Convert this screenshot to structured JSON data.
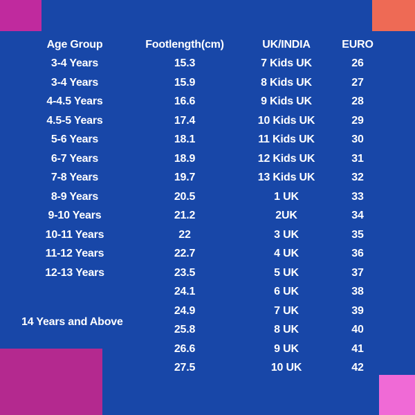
{
  "table": {
    "headers": [
      "Age Group",
      "Footlength(cm)",
      "UK/INDIA",
      "EURO"
    ],
    "rows": [
      [
        "3-4 Years",
        "15.3",
        "7 Kids UK",
        "26"
      ],
      [
        "3-4 Years",
        "15.9",
        "8 Kids UK",
        "27"
      ],
      [
        "4-4.5 Years",
        "16.6",
        "9 Kids UK",
        "28"
      ],
      [
        "4.5-5 Years",
        "17.4",
        "10 Kids UK",
        "29"
      ],
      [
        "5-6 Years",
        "18.1",
        "11 Kids UK",
        "30"
      ],
      [
        "6-7 Years",
        "18.9",
        "12 Kids UK",
        "31"
      ],
      [
        "7-8 Years",
        "19.7",
        "13 Kids UK",
        "32"
      ],
      [
        "8-9 Years",
        "20.5",
        "1 UK",
        "33"
      ],
      [
        "9-10 Years",
        "21.2",
        "2UK",
        "34"
      ],
      [
        "10-11 Years",
        "22",
        "3 UK",
        "35"
      ],
      [
        "11-12 Years",
        "22.7",
        "4 UK",
        "36"
      ],
      [
        "12-13 Years",
        "23.5",
        "5 UK",
        "37"
      ],
      [
        "",
        "24.1",
        "6 UK",
        "38"
      ],
      [
        "",
        "24.9",
        "7 UK",
        "39"
      ],
      [
        "14 Years and Above",
        "25.8",
        "8 UK",
        "40"
      ],
      [
        "",
        "26.6",
        "9 UK",
        "41"
      ],
      [
        "",
        "27.5",
        "10 UK",
        "42"
      ]
    ]
  },
  "colors": {
    "background": "#1847a8",
    "corner_top_left": "#c02a9e",
    "corner_top_right": "#ee6a55",
    "corner_bottom_left": "#b4298f",
    "corner_bottom_right": "#f06ad6",
    "text": "#ffffff"
  }
}
